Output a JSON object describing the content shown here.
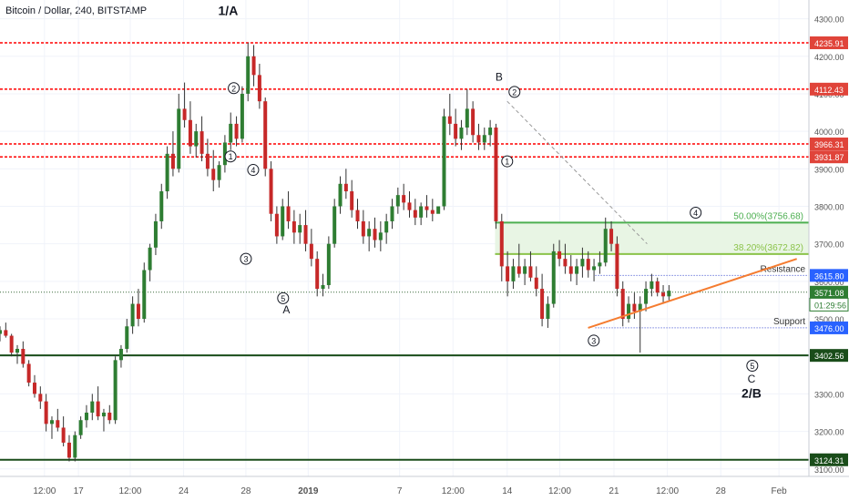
{
  "header": {
    "title": "Bitcoin / Dollar, 240, BITSTAMP"
  },
  "chart_data": {
    "type": "candlestick",
    "title": "Bitcoin / Dollar, 240, BITSTAMP",
    "ylim": [
      3080,
      4350
    ],
    "y_ticks": [
      3100,
      3200,
      3300,
      3400,
      3500,
      3600,
      3700,
      3800,
      3900,
      4000,
      4100,
      4200,
      4300
    ],
    "y_tick_labels": [
      "3100.00",
      "3200.00",
      "3300.00",
      "3400.00",
      "3500.00",
      "3600.00",
      "3700.00",
      "3800.00",
      "3900.00",
      "4000.00",
      "4100.00",
      "4200.00",
      "4300.00"
    ],
    "x_ticks": [
      {
        "label": "12:00",
        "t": 0.055
      },
      {
        "label": "17",
        "t": 0.097
      },
      {
        "label": "12:00",
        "t": 0.161
      },
      {
        "label": "24",
        "t": 0.227
      },
      {
        "label": "28",
        "t": 0.304
      },
      {
        "label": "2019",
        "t": 0.381
      },
      {
        "label": "7",
        "t": 0.494
      },
      {
        "label": "12:00",
        "t": 0.56
      },
      {
        "label": "14",
        "t": 0.627
      },
      {
        "label": "12:00",
        "t": 0.692
      },
      {
        "label": "21",
        "t": 0.759
      },
      {
        "label": "12:00",
        "t": 0.825
      },
      {
        "label": "28",
        "t": 0.891
      },
      {
        "label": "Feb",
        "t": 0.963
      }
    ],
    "candles": [
      [
        3460,
        3480,
        3440,
        3470
      ],
      [
        3470,
        3490,
        3450,
        3455
      ],
      [
        3455,
        3460,
        3400,
        3410
      ],
      [
        3410,
        3430,
        3380,
        3420
      ],
      [
        3420,
        3440,
        3370,
        3380
      ],
      [
        3380,
        3390,
        3320,
        3330
      ],
      [
        3330,
        3350,
        3290,
        3300
      ],
      [
        3300,
        3320,
        3260,
        3280
      ],
      [
        3280,
        3300,
        3200,
        3220
      ],
      [
        3220,
        3240,
        3180,
        3230
      ],
      [
        3230,
        3260,
        3200,
        3210
      ],
      [
        3210,
        3240,
        3160,
        3170
      ],
      [
        3170,
        3190,
        3120,
        3130
      ],
      [
        3130,
        3200,
        3120,
        3190
      ],
      [
        3190,
        3240,
        3180,
        3230
      ],
      [
        3230,
        3270,
        3210,
        3250
      ],
      [
        3250,
        3300,
        3230,
        3280
      ],
      [
        3280,
        3320,
        3230,
        3240
      ],
      [
        3240,
        3260,
        3200,
        3250
      ],
      [
        3250,
        3270,
        3220,
        3230
      ],
      [
        3230,
        3400,
        3220,
        3390
      ],
      [
        3390,
        3430,
        3370,
        3420
      ],
      [
        3420,
        3500,
        3410,
        3480
      ],
      [
        3480,
        3560,
        3460,
        3540
      ],
      [
        3540,
        3580,
        3480,
        3500
      ],
      [
        3500,
        3650,
        3490,
        3630
      ],
      [
        3630,
        3700,
        3600,
        3690
      ],
      [
        3690,
        3780,
        3670,
        3760
      ],
      [
        3760,
        3860,
        3740,
        3840
      ],
      [
        3840,
        3960,
        3820,
        3940
      ],
      [
        3940,
        4000,
        3880,
        3900
      ],
      [
        3900,
        4100,
        3890,
        4060
      ],
      [
        4060,
        4130,
        4010,
        4030
      ],
      [
        4030,
        4080,
        3940,
        3960
      ],
      [
        3960,
        4020,
        3930,
        4000
      ],
      [
        4000,
        4040,
        3920,
        3940
      ],
      [
        3940,
        3980,
        3880,
        3900
      ],
      [
        3900,
        3950,
        3840,
        3870
      ],
      [
        3870,
        3920,
        3850,
        3910
      ],
      [
        3910,
        3990,
        3890,
        3970
      ],
      [
        3970,
        4050,
        3950,
        4020
      ],
      [
        4020,
        4040,
        3960,
        3980
      ],
      [
        3980,
        4120,
        3970,
        4100
      ],
      [
        4100,
        4236,
        4080,
        4200
      ],
      [
        4200,
        4230,
        4120,
        4150
      ],
      [
        4150,
        4180,
        4060,
        4080
      ],
      [
        4080,
        4090,
        3880,
        3900
      ],
      [
        3900,
        3920,
        3760,
        3780
      ],
      [
        3780,
        3800,
        3700,
        3720
      ],
      [
        3720,
        3820,
        3710,
        3800
      ],
      [
        3800,
        3840,
        3740,
        3760
      ],
      [
        3760,
        3790,
        3700,
        3730
      ],
      [
        3730,
        3780,
        3700,
        3750
      ],
      [
        3750,
        3790,
        3680,
        3700
      ],
      [
        3700,
        3740,
        3640,
        3660
      ],
      [
        3660,
        3680,
        3560,
        3580
      ],
      [
        3580,
        3620,
        3560,
        3590
      ],
      [
        3590,
        3720,
        3580,
        3700
      ],
      [
        3700,
        3820,
        3690,
        3800
      ],
      [
        3800,
        3880,
        3780,
        3860
      ],
      [
        3860,
        3900,
        3820,
        3840
      ],
      [
        3840,
        3870,
        3770,
        3790
      ],
      [
        3790,
        3820,
        3740,
        3760
      ],
      [
        3760,
        3790,
        3700,
        3720
      ],
      [
        3720,
        3760,
        3680,
        3740
      ],
      [
        3740,
        3770,
        3690,
        3710
      ],
      [
        3710,
        3760,
        3680,
        3730
      ],
      [
        3730,
        3780,
        3700,
        3760
      ],
      [
        3760,
        3820,
        3740,
        3800
      ],
      [
        3800,
        3850,
        3780,
        3830
      ],
      [
        3830,
        3860,
        3790,
        3810
      ],
      [
        3810,
        3840,
        3770,
        3790
      ],
      [
        3790,
        3820,
        3750,
        3770
      ],
      [
        3770,
        3810,
        3750,
        3800
      ],
      [
        3800,
        3830,
        3770,
        3790
      ],
      [
        3790,
        3820,
        3760,
        3780
      ],
      [
        3780,
        3800,
        3790,
        3800
      ],
      [
        3800,
        4060,
        3790,
        4040
      ],
      [
        4040,
        4100,
        3990,
        4020
      ],
      [
        4020,
        4060,
        3960,
        3980
      ],
      [
        3980,
        4030,
        3950,
        4010
      ],
      [
        4010,
        4112,
        3990,
        4060
      ],
      [
        4060,
        4080,
        3970,
        3990
      ],
      [
        3990,
        4020,
        3950,
        3970
      ],
      [
        3970,
        4010,
        3950,
        3990
      ],
      [
        3990,
        4030,
        3960,
        4010
      ],
      [
        4010,
        4020,
        3740,
        3760
      ],
      [
        3760,
        3780,
        3600,
        3640
      ],
      [
        3640,
        3680,
        3560,
        3600
      ],
      [
        3600,
        3660,
        3580,
        3640
      ],
      [
        3640,
        3700,
        3610,
        3620
      ],
      [
        3620,
        3660,
        3590,
        3640
      ],
      [
        3640,
        3680,
        3600,
        3610
      ],
      [
        3610,
        3640,
        3560,
        3580
      ],
      [
        3580,
        3620,
        3480,
        3500
      ],
      [
        3500,
        3560,
        3476,
        3540
      ],
      [
        3540,
        3700,
        3530,
        3680
      ],
      [
        3680,
        3710,
        3640,
        3660
      ],
      [
        3660,
        3700,
        3620,
        3640
      ],
      [
        3640,
        3670,
        3600,
        3620
      ],
      [
        3620,
        3660,
        3590,
        3640
      ],
      [
        3640,
        3690,
        3610,
        3660
      ],
      [
        3660,
        3680,
        3610,
        3630
      ],
      [
        3630,
        3660,
        3600,
        3640
      ],
      [
        3640,
        3680,
        3620,
        3650
      ],
      [
        3650,
        3770,
        3640,
        3740
      ],
      [
        3740,
        3760,
        3680,
        3700
      ],
      [
        3700,
        3720,
        3560,
        3580
      ],
      [
        3580,
        3600,
        3480,
        3500
      ],
      [
        3500,
        3560,
        3490,
        3540
      ],
      [
        3540,
        3570,
        3500,
        3520
      ],
      [
        3520,
        3560,
        3410,
        3540
      ],
      [
        3540,
        3600,
        3520,
        3580
      ],
      [
        3580,
        3620,
        3560,
        3600
      ],
      [
        3600,
        3610,
        3560,
        3570
      ],
      [
        3570,
        3590,
        3540,
        3560
      ],
      [
        3560,
        3590,
        3550,
        3575
      ]
    ],
    "horizontal_lines": [
      {
        "value": 4235.91,
        "label": "4235.91",
        "color": "#ff0000",
        "style": "dotted",
        "tag_bg": "#e0443a",
        "full": true
      },
      {
        "value": 4112.43,
        "label": "4112.43",
        "color": "#ff0000",
        "style": "dotted",
        "tag_bg": "#e0443a",
        "full": true
      },
      {
        "value": 3966.31,
        "label": "3966.31",
        "color": "#ff0000",
        "style": "dotted",
        "tag_bg": "#e0443a",
        "full": true
      },
      {
        "value": 3931.87,
        "label": "3931.87",
        "color": "#ff0000",
        "style": "dotted",
        "tag_bg": "#e0443a",
        "full": true
      },
      {
        "value": 3402.56,
        "label": "3402.56",
        "color": "#1a4d1a",
        "style": "solid",
        "tag_bg": "#1a4d1a",
        "full": true
      },
      {
        "value": 3124.31,
        "label": "3124.31",
        "color": "#1a4d1a",
        "style": "solid",
        "tag_bg": "#1a4d1a",
        "full": true
      },
      {
        "value": 3571.08,
        "label": "3571.08",
        "color": "#3a6b3a",
        "style": "dotted_thin",
        "tag_bg": "#2e7d32",
        "full": true
      },
      {
        "value": 3615.8,
        "label": "3615.80",
        "color": "#3344cc",
        "style": "dotted_thin",
        "tag_bg": "#2962ff",
        "from": 0.736,
        "text": "Resistance"
      },
      {
        "value": 3476.0,
        "label": "3476.00",
        "color": "#3344cc",
        "style": "dotted_thin",
        "tag_bg": "#2962ff",
        "from": 0.736,
        "text": "Support"
      }
    ],
    "countdown_tag": {
      "label": "01:29:56",
      "value": 3538
    },
    "fib_zone": {
      "top": 3756.68,
      "bottom": 3672.82,
      "from": 0.612,
      "top_label": "50.00%(3756.68)",
      "bottom_label": "38.20%(3672.82)"
    },
    "trendline": {
      "x1": 0.727,
      "y1": 3476,
      "x2": 0.985,
      "y2": 3660,
      "color": "#f57c30"
    },
    "dashed_line": {
      "x1": 0.627,
      "y1": 4080,
      "x2": 0.8,
      "y2": 3700
    },
    "wave_labels": [
      {
        "text": "1/A",
        "t": 0.282,
        "v": 4310,
        "bold": true
      },
      {
        "text": "B",
        "t": 0.617,
        "v": 4135,
        "bold": false
      },
      {
        "text": "A",
        "t": 0.354,
        "v": 3515,
        "bold": false
      },
      {
        "text": "C",
        "t": 0.929,
        "v": 3330,
        "bold": false
      },
      {
        "text": "2/B",
        "t": 0.929,
        "v": 3290,
        "bold": true
      }
    ],
    "circled_labels": [
      {
        "text": "2",
        "t": 0.289,
        "v": 4115
      },
      {
        "text": "1",
        "t": 0.285,
        "v": 3933
      },
      {
        "text": "4",
        "t": 0.313,
        "v": 3897
      },
      {
        "text": "3",
        "t": 0.304,
        "v": 3660
      },
      {
        "text": "5",
        "t": 0.35,
        "v": 3555
      },
      {
        "text": "2",
        "t": 0.636,
        "v": 4105
      },
      {
        "text": "1",
        "t": 0.627,
        "v": 3920
      },
      {
        "text": "3",
        "t": 0.734,
        "v": 3442
      },
      {
        "text": "4",
        "t": 0.86,
        "v": 3783
      },
      {
        "text": "5",
        "t": 0.93,
        "v": 3375
      }
    ]
  }
}
